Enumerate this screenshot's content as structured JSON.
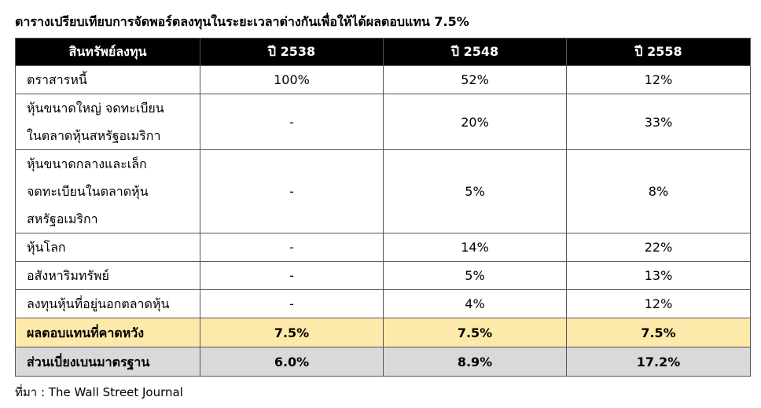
{
  "title": "ตารางเปรียบเทียบการจัดพอร์ตลงทุนในระยะเวลาต่างกันเพื่อให้ได้ผลตอบแทน 7.5%",
  "table": {
    "headers": [
      "สินทรัพย์ลงทุน",
      "ปี 2538",
      "ปี 2548",
      "ปี 2558"
    ],
    "rows": [
      {
        "label_lines": [
          "ตราสารหนี้"
        ],
        "values": [
          "100%",
          "52%",
          "12%"
        ]
      },
      {
        "label_lines": [
          "หุ้นขนาดใหญ่ จดทะเบียน",
          "ในตลาดหุ้นสหรัฐอเมริกา"
        ],
        "values": [
          "-",
          "20%",
          "33%"
        ]
      },
      {
        "label_lines": [
          "หุ้นขนาดกลางและเล็ก",
          "จดทะเบียนในตลาดหุ้น",
          "สหรัฐอเมริกา"
        ],
        "values": [
          "-",
          "5%",
          "8%"
        ]
      },
      {
        "label_lines": [
          "หุ้นโลก"
        ],
        "values": [
          "-",
          "14%",
          "22%"
        ]
      },
      {
        "label_lines": [
          "อสังหาริมทรัพย์"
        ],
        "values": [
          "-",
          "5%",
          "13%"
        ]
      },
      {
        "label_lines": [
          "ลงทุนหุ้นที่อยู่นอกตลาดหุ้น"
        ],
        "values": [
          "-",
          "4%",
          "12%"
        ]
      }
    ],
    "expected_return": {
      "label": "ผลตอบแทนที่คาดหวัง",
      "values": [
        "7.5%",
        "7.5%",
        "7.5%"
      ]
    },
    "std_dev": {
      "label": "ส่วนเบี่ยงเบนมาตรฐาน",
      "values": [
        "6.0%",
        "8.9%",
        "17.2%"
      ]
    }
  },
  "source": "ที่มา : The Wall Street Journal",
  "colors": {
    "header_bg": "#000000",
    "expected_bg": "#fde9a9",
    "std_dev_bg": "#d9d9d9"
  }
}
